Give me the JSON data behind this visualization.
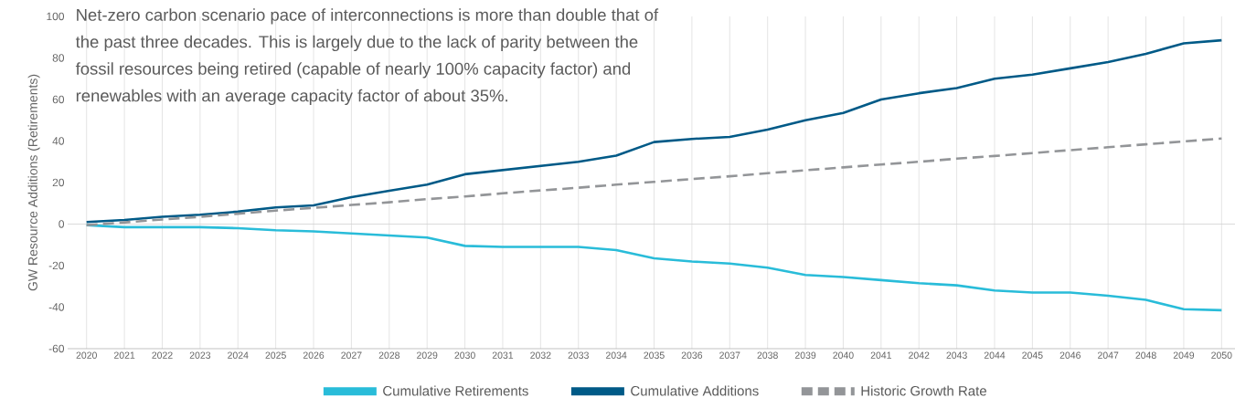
{
  "chart_data": {
    "type": "line",
    "annotations": [
      "Net-zero carbon scenario pace of interconnections is more than double that of the past three decades. This is largely due to the lack of parity between the fossil resources being retired (capable of nearly 100% capacity factor) and renewables with an average capacity factor of about 35%."
    ],
    "ylabel": "GW Resource Additions (Retirements)",
    "categories": [
      "2020",
      "2021",
      "2022",
      "2023",
      "2024",
      "2025",
      "2026",
      "2027",
      "2028",
      "2029",
      "2030",
      "2031",
      "2032",
      "2033",
      "2034",
      "2035",
      "2036",
      "2037",
      "2038",
      "2039",
      "2040",
      "2041",
      "2042",
      "2043",
      "2044",
      "2045",
      "2046",
      "2047",
      "2048",
      "2049",
      "2050"
    ],
    "series": [
      {
        "name": "Cumulative Retirements",
        "color": "#29bcd9",
        "values": [
          -0.5,
          -1.5,
          -1.5,
          -1.5,
          -2,
          -3,
          -3.5,
          -4.5,
          -5.5,
          -6.5,
          -10.5,
          -11,
          -11,
          -11,
          -12.5,
          -16.5,
          -18,
          -19,
          -21,
          -24.5,
          -25.5,
          -27,
          -28.5,
          -29.5,
          -32,
          -33,
          -33,
          -34.5,
          -36.5,
          -41,
          -41.5
        ]
      },
      {
        "name": "Cumulative Additions",
        "color": "#005a87",
        "values": [
          1,
          2,
          3.5,
          4.5,
          6,
          8,
          9,
          13,
          16,
          19,
          24,
          26,
          28,
          30,
          33,
          39.5,
          41,
          42,
          45.5,
          50,
          53.5,
          60,
          63,
          65.5,
          70,
          72,
          75,
          78,
          82,
          87,
          88.5
        ]
      },
      {
        "name": "Historic Growth Rate",
        "color": "#939598",
        "line_style": "dashed",
        "values": [
          -0.5,
          0.8,
          2.2,
          3.5,
          5,
          6.5,
          7.8,
          9.2,
          10.5,
          12,
          13.3,
          14.8,
          16.2,
          17.5,
          19,
          20.3,
          21.7,
          23,
          24.5,
          25.9,
          27.3,
          28.7,
          30,
          31.5,
          32.8,
          34.2,
          35.6,
          37,
          38.4,
          39.8,
          41.2
        ]
      }
    ],
    "ylim": [
      -60,
      100
    ],
    "yticks": [
      -60,
      -40,
      -20,
      0,
      20,
      40,
      60,
      80,
      100
    ],
    "ref_lines": [
      {
        "axis": "y",
        "value": 0,
        "color": "#d0d0d0"
      }
    ],
    "grid": "x",
    "legend": "bottom",
    "marker": "none",
    "line_style": "solid"
  }
}
